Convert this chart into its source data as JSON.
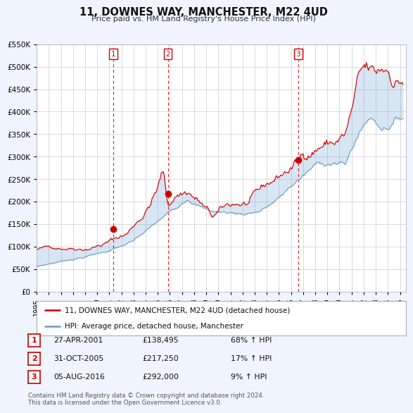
{
  "title": "11, DOWNES WAY, MANCHESTER, M22 4UD",
  "subtitle": "Price paid vs. HM Land Registry's House Price Index (HPI)",
  "legend_line1": "11, DOWNES WAY, MANCHESTER, M22 4UD (detached house)",
  "legend_line2": "HPI: Average price, detached house, Manchester",
  "transactions": [
    {
      "num": 1,
      "date": "27-APR-2001",
      "date_val": 2001.32,
      "price": 138495,
      "pct": "68%",
      "dir": "↑"
    },
    {
      "num": 2,
      "date": "31-OCT-2005",
      "date_val": 2005.83,
      "price": 217250,
      "pct": "17%",
      "dir": "↑"
    },
    {
      "num": 3,
      "date": "05-AUG-2016",
      "date_val": 2016.59,
      "price": 292000,
      "pct": "9%",
      "dir": "↑"
    }
  ],
  "footnote1": "Contains HM Land Registry data © Crown copyright and database right 2024.",
  "footnote2": "This data is licensed under the Open Government Licence v3.0.",
  "price_color": "#cc0000",
  "hpi_color": "#6699cc",
  "fill_color": "#dce8f5",
  "background_color": "#f0f4ff",
  "plot_bg_color": "#ffffff",
  "grid_color": "#cccccc",
  "ylim": [
    0,
    550000
  ],
  "xlim_start": 1995.0,
  "xlim_end": 2025.5,
  "yticks": [
    0,
    50000,
    100000,
    150000,
    200000,
    250000,
    300000,
    350000,
    400000,
    450000,
    500000,
    550000
  ],
  "ytick_labels": [
    "£0",
    "£50K",
    "£100K",
    "£150K",
    "£200K",
    "£250K",
    "£300K",
    "£350K",
    "£400K",
    "£450K",
    "£500K",
    "£550K"
  ],
  "xtick_years": [
    1995,
    1996,
    1997,
    1998,
    1999,
    2000,
    2001,
    2002,
    2003,
    2004,
    2005,
    2006,
    2007,
    2008,
    2009,
    2010,
    2011,
    2012,
    2013,
    2014,
    2015,
    2016,
    2017,
    2018,
    2019,
    2020,
    2021,
    2022,
    2023,
    2024,
    2025
  ]
}
